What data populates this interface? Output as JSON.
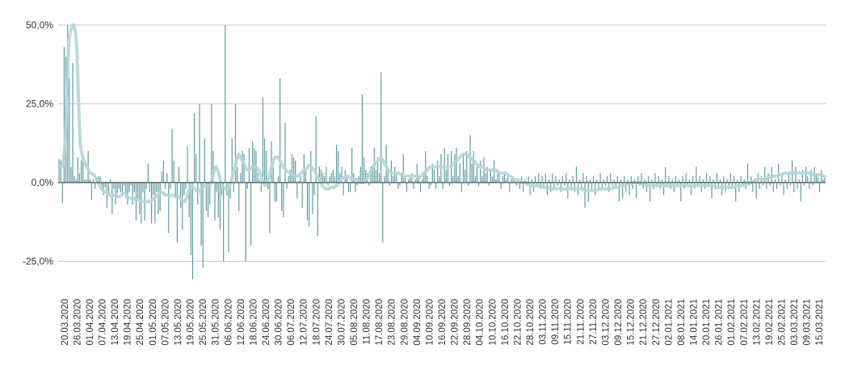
{
  "chart_data": {
    "type": "bar",
    "title": "",
    "xlabel": "",
    "ylabel": "",
    "ylim": [
      -31,
      50
    ],
    "y_ticks": [
      {
        "value": 50,
        "label": "50,0%"
      },
      {
        "value": 25,
        "label": "25,0%"
      },
      {
        "value": 0,
        "label": "0,0%"
      },
      {
        "value": -25,
        "label": "-25,0%"
      }
    ],
    "grid": true,
    "legend": "none",
    "x_start": "20.03.2020",
    "x_end": "20.03.2021",
    "x_tick_labels": [
      "20.03.2020",
      "26.03.2020",
      "01.04.2020",
      "07.04.2020",
      "13.04.2020",
      "19.04.2020",
      "25.04.2020",
      "01.05.2020",
      "07.05.2020",
      "13.05.2020",
      "19.05.2020",
      "25.05.2020",
      "31.05.2020",
      "06.06.2020",
      "12.06.2020",
      "18.06.2020",
      "24.06.2020",
      "30.06.2020",
      "06.07.2020",
      "12.07.2020",
      "18.07.2020",
      "24.07.2020",
      "30.07.2020",
      "05.08.2020",
      "11.08.2020",
      "17.08.2020",
      "23.08.2020",
      "29.08.2020",
      "04.09.2020",
      "10.09.2020",
      "16.09.2020",
      "22.09.2020",
      "28.09.2020",
      "04.10.2020",
      "10.10.2020",
      "16.10.2020",
      "22.10.2020",
      "28.10.2020",
      "03.11.2020",
      "09.11.2020",
      "15.11.2020",
      "21.11.2020",
      "27.11.2020",
      "03.12.2020",
      "09.12.2020",
      "15.12.2020",
      "21.12.2020",
      "27.12.2020",
      "02.01.2021",
      "08.01.2021",
      "14.01.2021",
      "20.01.2021",
      "26.01.2021",
      "01.02.2021",
      "07.02.2021",
      "13.02.2021",
      "19.02.2021",
      "25.02.2021",
      "03.03.2021",
      "09.03.2021",
      "15.03.2021"
    ],
    "colors": {
      "bars": "#5b9aa0",
      "trend": "#b7d5d8",
      "grid": "#cccccc",
      "zero_line": "#4d4d4d"
    },
    "series": [
      {
        "type": "bar",
        "values": [
          7.5,
          7,
          -6.5,
          43,
          40,
          57,
          33,
          5,
          38,
          2,
          1,
          8,
          3,
          7,
          9,
          1,
          1,
          10,
          1,
          -5.5,
          1,
          -2,
          1,
          2,
          2,
          -2.5,
          -4,
          -1.5,
          -8,
          -4,
          1,
          -10,
          -2,
          -7,
          -3.5,
          -2,
          -3,
          -4,
          -1,
          -5,
          -7,
          -3,
          -1,
          -7,
          -3,
          -12,
          -5,
          -10,
          -13,
          -3,
          -12,
          -2,
          6,
          -3,
          -13,
          -4,
          -13,
          -3,
          -10,
          -9,
          3.5,
          7,
          -2,
          3,
          -16,
          -2,
          17,
          7,
          -5,
          -19,
          5,
          -8,
          -15,
          -4,
          -2,
          11.5,
          -11,
          -23,
          -31,
          22,
          9,
          -7,
          25,
          -20,
          -27,
          14,
          -9,
          -11,
          -7,
          25,
          10,
          -12,
          -3,
          -11,
          -15,
          -4,
          -25,
          50,
          -4,
          -22,
          -5,
          14,
          -3,
          25,
          5,
          -9,
          3,
          10,
          9,
          -25,
          -2,
          11,
          -20,
          13,
          11,
          10,
          3,
          1,
          -3,
          27,
          14,
          10,
          -2,
          -16,
          13,
          5,
          -6,
          -6,
          2,
          33,
          -9,
          -11,
          19,
          -2,
          2,
          4,
          9,
          8,
          7,
          -5,
          0.5,
          2,
          -8,
          9,
          4,
          -12,
          -14,
          10,
          -10,
          -4,
          21,
          -17,
          5,
          4,
          3,
          2,
          5,
          -1,
          2,
          3,
          4,
          2,
          12,
          10,
          3,
          5,
          -4,
          4,
          2,
          -3,
          -3,
          11,
          3,
          -3,
          -1,
          2,
          5,
          28,
          8,
          4,
          3,
          -1,
          5,
          5,
          11,
          4,
          8,
          3,
          35,
          -19,
          2,
          12,
          4,
          -1,
          7,
          2,
          5,
          3,
          -2,
          -1,
          3,
          9,
          2,
          -3,
          1,
          2,
          3,
          -2,
          1,
          6,
          2,
          -3,
          1,
          3,
          10,
          2,
          -2,
          -1,
          6,
          4,
          -2,
          7,
          2,
          9,
          -2,
          11,
          4,
          9,
          -1,
          10,
          2,
          9,
          11,
          2,
          6,
          -3,
          9,
          4,
          10,
          -1,
          15,
          6,
          10,
          2,
          5,
          -1,
          7,
          2,
          8,
          3,
          5,
          -1,
          4,
          2,
          7,
          1,
          4,
          3,
          -2,
          2,
          3,
          1,
          2,
          -3,
          1,
          2,
          0.5,
          -1,
          1,
          -2,
          2,
          -3,
          1,
          -1,
          2,
          -4,
          1,
          -3,
          2,
          -1,
          3,
          -2,
          2,
          -1,
          3,
          -4,
          1,
          -3,
          3,
          -2,
          2,
          -1,
          1,
          -3,
          2,
          -1,
          3,
          -5,
          1,
          -2,
          2,
          -3,
          5,
          -4,
          1,
          -2,
          3,
          -8,
          2,
          -6,
          1,
          -3,
          2,
          -4,
          1,
          -2,
          3,
          -2,
          1,
          -1,
          2,
          -3,
          3,
          -1,
          1,
          -2,
          2,
          -6,
          1,
          -5,
          2,
          -3,
          1,
          -4,
          2,
          -2,
          1,
          -5,
          2,
          -1,
          3,
          -2,
          1,
          -3,
          2,
          -6,
          1,
          -2,
          3,
          -1,
          2,
          -2,
          1,
          -4,
          5,
          -1,
          2,
          -2,
          1,
          -3,
          2,
          -1,
          1,
          -6,
          2,
          -2,
          3,
          -1,
          1,
          -4,
          2,
          -2,
          5,
          -1,
          2,
          -3,
          1,
          -2,
          3,
          -1,
          2,
          -5,
          1,
          -2,
          3,
          -1,
          1,
          -4,
          2,
          -3,
          1,
          -2,
          3,
          -1,
          2,
          -6,
          1,
          -3,
          2,
          -1,
          1,
          -2,
          6,
          -1,
          2,
          -3,
          1,
          -5,
          3,
          -2,
          2,
          -1,
          5,
          -2,
          3,
          -1,
          5,
          -3,
          1,
          -2,
          6,
          -1,
          2,
          -4,
          1,
          -2,
          3,
          -1,
          7,
          -3,
          5,
          -2,
          1,
          -6,
          4,
          -1,
          5,
          2,
          -2,
          4,
          -1,
          5,
          3,
          2,
          -3,
          4,
          1,
          2
        ]
      },
      {
        "type": "trend",
        "values": [
          5,
          5,
          5,
          8,
          15,
          30,
          45,
          48,
          50,
          50,
          48,
          42,
          25,
          12,
          9,
          7,
          6,
          5,
          4,
          3,
          3,
          2.5,
          2,
          1,
          0,
          -1,
          -2,
          -2.5,
          -3,
          -3,
          -3.5,
          -4,
          -4,
          -4,
          -4,
          -4,
          -4.5,
          -4.5,
          -4,
          -3.5,
          -3.5,
          -4,
          -4.5,
          -5,
          -5,
          -5,
          -5,
          -5.5,
          -5.5,
          -5.5,
          -6,
          -6,
          -6,
          -6,
          -6,
          -6,
          -6,
          -5.5,
          -5,
          -4.5,
          -4,
          -3.5,
          -3,
          -3,
          -3.5,
          -4,
          -4,
          -4,
          -4,
          -4,
          -4,
          -4.5,
          -4.5,
          -4.5,
          -5,
          -5.5,
          -6,
          -6,
          -5,
          -3,
          -2,
          -1,
          -1.5,
          -2,
          -2.5,
          -3,
          -2.5,
          -2,
          -1.5,
          -1,
          -1,
          -1,
          -1,
          0,
          2,
          4,
          5,
          4,
          2,
          0,
          -1,
          -1.5,
          -2,
          -2,
          -1,
          0,
          2,
          4,
          6,
          8,
          9,
          8,
          7,
          6,
          5,
          4,
          4,
          4.5,
          5,
          5,
          5,
          4.5,
          4,
          3,
          1,
          0,
          -1,
          0,
          1,
          3,
          5,
          7,
          8,
          8,
          8,
          7,
          6,
          5,
          4.5,
          4,
          3.5,
          3,
          3,
          2.5,
          2,
          2,
          2,
          2.5,
          3,
          3.5,
          4,
          4.5,
          5,
          5.5,
          5,
          4.5,
          4,
          3,
          2,
          1,
          0,
          -1,
          -1.5,
          -2,
          -2,
          -2,
          -1.5,
          -1.5,
          -1.5,
          -1,
          -1,
          0,
          0.5,
          1,
          1.5,
          2,
          2,
          2,
          1.5,
          1,
          1,
          1,
          1,
          0.5,
          0,
          0,
          0,
          0.5,
          1,
          2,
          3,
          4,
          5,
          6,
          6.5,
          7,
          7.5,
          7.5,
          7,
          6,
          5,
          4,
          3.5,
          3,
          3,
          3,
          3,
          3,
          3,
          2.5,
          2.5,
          2,
          2,
          2,
          2,
          2,
          2,
          2,
          2,
          2,
          2,
          2,
          2.5,
          3,
          3.5,
          4,
          4.5,
          5,
          5,
          5,
          5,
          5,
          5,
          5,
          5,
          5,
          5,
          5,
          5,
          5,
          5.5,
          6,
          6.5,
          7,
          7.5,
          8,
          8.5,
          9,
          9,
          9,
          8.5,
          8,
          7.5,
          7,
          6.5,
          6,
          5.5,
          5,
          5,
          5,
          4.5,
          4,
          4,
          4,
          4,
          4,
          4,
          4,
          3.5,
          3,
          3,
          3,
          3,
          3,
          2.5,
          2,
          2,
          1.5,
          1,
          1,
          1,
          0.5,
          0.5,
          0,
          0,
          0,
          -0.5,
          -0.5,
          -1,
          -1,
          -1,
          -1,
          -1,
          -1,
          -1,
          -1,
          -1.5,
          -1.5,
          -1.5,
          -1.5,
          -2,
          -2,
          -2,
          -2,
          -2,
          -2,
          -2,
          -2,
          -2,
          -2,
          -2,
          -2,
          -2,
          -2,
          -2,
          -2,
          -2,
          -2,
          -2,
          -2,
          -2,
          -2.5,
          -2.5,
          -2.5,
          -2.5,
          -2.5,
          -2.5,
          -2.5,
          -2.5,
          -2.5,
          -2,
          -2,
          -2,
          -2,
          -2,
          -2,
          -2,
          -2,
          -2,
          -1.5,
          -1.5,
          -1.5,
          -1.5,
          -1,
          -1,
          -1,
          -1,
          -0.5,
          -0.5,
          -0.5,
          -0.5,
          0,
          0,
          0,
          0,
          0,
          -0.5,
          -0.5,
          -0.5,
          -1,
          -1,
          -1,
          -1,
          -1,
          -1,
          -1,
          -1,
          -1,
          -1,
          -1,
          -1,
          -1,
          -1,
          -1,
          -1,
          -1,
          -1,
          -1,
          -1,
          -1,
          -1,
          -1,
          -1,
          -1,
          -1,
          -1,
          -1,
          -1,
          -1,
          -1,
          -1,
          -1,
          -1,
          -1,
          -1,
          -1,
          -1,
          -1,
          -1,
          -1,
          -1,
          -1,
          -1.5,
          -1.5,
          -1.5,
          -1.5,
          -1.5,
          -1.5,
          -1.5,
          -1.5,
          -1.5,
          -1.5,
          -1.5,
          -1.5,
          -1,
          -1,
          -1,
          -1,
          -1,
          -0.5,
          -0.5,
          0,
          0,
          0,
          0.5,
          0.5,
          1,
          1,
          1,
          1,
          1,
          1,
          1,
          1.5,
          1.5,
          2,
          2,
          2,
          2,
          2,
          2.5,
          2.5,
          2.5,
          3,
          3,
          3,
          3,
          3,
          3,
          3,
          3,
          3,
          3,
          3,
          3,
          3,
          3,
          3,
          3,
          3,
          3,
          2.5,
          2.5,
          2.5,
          2.5,
          2.5,
          2.5,
          2,
          2
        ]
      }
    ]
  }
}
